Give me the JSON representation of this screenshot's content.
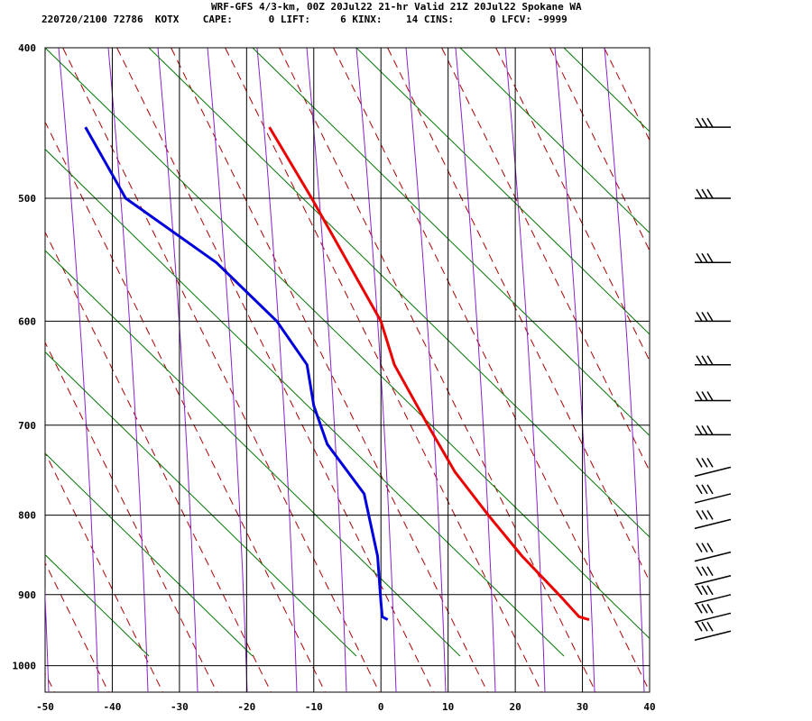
{
  "header": {
    "title": "WRF-GFS 4/3-km, 00Z 20Jul22 21-hr Valid 21Z 20Jul22 Spokane WA",
    "info": "220720/2100 72786  KOTX    CAPE:      0 LIFT:     6 KINX:    14 CINS:      0 LFCV: -9999"
  },
  "colors": {
    "temperature": "#ee0000",
    "dewpoint": "#0000dd",
    "dry_adiabat": "#aa0000",
    "moist_adiabat": "#8822cc",
    "mixing_ratio": "#007700",
    "grid": "#000000",
    "wind_barb": "#000000"
  },
  "chart_data": {
    "type": "line",
    "subtype": "skew-t log-p sounding",
    "xlabel": "",
    "ylabel": "",
    "x_unit": "deg C",
    "y_unit": "hPa",
    "y_scale": "log",
    "y_inverted": true,
    "xlim": [
      -50,
      40
    ],
    "ylim": [
      1040,
      400
    ],
    "x_ticks": [
      -50,
      -40,
      -30,
      -20,
      -10,
      0,
      10,
      20,
      30,
      40
    ],
    "y_ticks": [
      400,
      500,
      600,
      700,
      800,
      900,
      1000
    ],
    "grid": true,
    "series": [
      {
        "key": "temperature",
        "pressure": [
          450,
          500,
          600,
          640,
          700,
          750,
          800,
          850,
          900,
          930,
          934
        ],
        "values": [
          -16.6,
          -10.3,
          0.0,
          2.0,
          7.0,
          11.0,
          16.0,
          21.0,
          26.5,
          29.5,
          31.0
        ]
      },
      {
        "key": "dewpoint",
        "pressure": [
          450,
          500,
          550,
          600,
          640,
          680,
          720,
          775,
          850,
          910,
          930,
          934
        ],
        "values": [
          -44.0,
          -38.0,
          -24.5,
          -15.5,
          -11.0,
          -10.0,
          -8.0,
          -2.5,
          -0.5,
          0.0,
          0.2,
          1.0
        ]
      }
    ],
    "wind_barbs": [
      {
        "pressure": 450,
        "label": "barb-450"
      },
      {
        "pressure": 500,
        "label": "barb-500"
      },
      {
        "pressure": 550,
        "label": "barb-550"
      },
      {
        "pressure": 600,
        "label": "barb-600"
      },
      {
        "pressure": 640,
        "label": "barb-640"
      },
      {
        "pressure": 675,
        "label": "barb-675"
      },
      {
        "pressure": 710,
        "label": "barb-710"
      },
      {
        "pressure": 745,
        "label": "barb-745"
      },
      {
        "pressure": 775,
        "label": "barb-775"
      },
      {
        "pressure": 805,
        "label": "barb-805"
      },
      {
        "pressure": 845,
        "label": "barb-845"
      },
      {
        "pressure": 875,
        "label": "barb-875"
      },
      {
        "pressure": 900,
        "label": "barb-900"
      },
      {
        "pressure": 925,
        "label": "barb-925"
      },
      {
        "pressure": 950,
        "label": "barb-950"
      }
    ]
  }
}
